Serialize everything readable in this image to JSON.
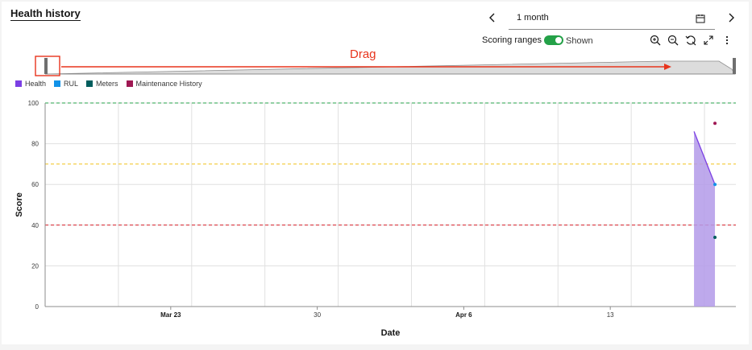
{
  "header": {
    "title": "Health history",
    "range_value": "1 month",
    "scoring_label": "Scoring ranges",
    "scoring_state": "Shown",
    "annotation": "Drag"
  },
  "icons": {
    "prev": "chevron-left-icon",
    "next": "chevron-right-icon",
    "calendar": "calendar-icon",
    "zoom_in": "zoom-in-icon",
    "zoom_out": "zoom-out-icon",
    "reset": "reset-zoom-icon",
    "fullscreen": "maximize-icon",
    "overflow": "overflow-menu-icon"
  },
  "colors": {
    "health": "#7b3fe4",
    "health_fill": "#b39ae9",
    "rul": "#1192e8",
    "meters": "#005d5d",
    "maintenance": "#9f1853",
    "range_high": "#24a148",
    "range_mid": "#f1c21b",
    "range_low": "#da1e28",
    "annotation": "#e8341c",
    "toggle": "#24a148"
  },
  "legend": [
    {
      "label": "Health",
      "color": "#7b3fe4"
    },
    {
      "label": "RUL",
      "color": "#1192e8"
    },
    {
      "label": "Meters",
      "color": "#005d5d"
    },
    {
      "label": "Maintenance History",
      "color": "#9f1853"
    }
  ],
  "chart_data": {
    "type": "area",
    "xlabel": "Date",
    "ylabel": "Score",
    "ylim": [
      0,
      100
    ],
    "yticks": [
      0,
      20,
      40,
      60,
      80,
      100
    ],
    "x_domain": [
      "2024-03-17",
      "2024-04-19"
    ],
    "x_ticks": [
      {
        "date": "2024-03-23",
        "label": "Mar 23",
        "major": true
      },
      {
        "date": "2024-03-30",
        "label": "30",
        "major": false
      },
      {
        "date": "2024-04-06",
        "label": "Apr 6",
        "major": true
      },
      {
        "date": "2024-04-13",
        "label": "13",
        "major": false
      }
    ],
    "scoring_ranges": [
      100,
      70,
      40
    ],
    "series": [
      {
        "name": "Health",
        "points": [
          [
            "2024-04-17",
            86
          ],
          [
            "2024-04-18",
            60
          ]
        ]
      },
      {
        "name": "RUL",
        "points": [
          [
            "2024-04-18",
            60
          ]
        ]
      },
      {
        "name": "Meters",
        "points": [
          [
            "2024-04-18",
            34
          ]
        ]
      },
      {
        "name": "Maintenance History",
        "points": [
          [
            "2024-04-18",
            90
          ]
        ]
      }
    ],
    "grid": true
  }
}
